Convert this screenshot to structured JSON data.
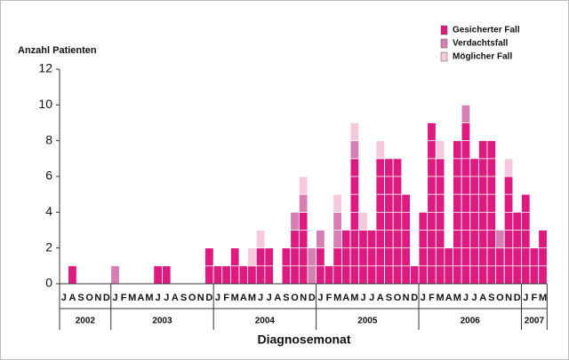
{
  "chart_data": {
    "type": "stacked_bar",
    "y_axis_label": "Anzahl Patienten",
    "x_axis_label": "Diagnosemonat",
    "categories": [
      "J",
      "A",
      "S",
      "O",
      "N",
      "D",
      "J",
      "F",
      "M",
      "A",
      "M",
      "J",
      "J",
      "A",
      "S",
      "O",
      "N",
      "D",
      "J",
      "F",
      "M",
      "A",
      "M",
      "J",
      "J",
      "A",
      "S",
      "O",
      "N",
      "D",
      "J",
      "F",
      "M",
      "A",
      "M",
      "J",
      "J",
      "A",
      "S",
      "O",
      "N",
      "D",
      "J",
      "F",
      "M",
      "A",
      "M",
      "J",
      "J",
      "A",
      "S",
      "O",
      "N",
      "D",
      "J",
      "F",
      "M"
    ],
    "years": [
      "2002",
      "2003",
      "2004",
      "2005",
      "2006",
      "2007"
    ],
    "series": [
      {
        "name": "Gesicherter Fall",
        "color": "#dc1a80",
        "values": [
          0,
          1,
          0,
          0,
          0,
          0,
          0,
          0,
          0,
          0,
          0,
          1,
          1,
          0,
          0,
          0,
          0,
          2,
          1,
          1,
          2,
          1,
          1,
          2,
          2,
          0,
          2,
          3,
          4,
          0,
          2,
          1,
          2,
          3,
          7,
          3,
          3,
          7,
          7,
          7,
          5,
          1,
          4,
          9,
          7,
          2,
          8,
          9,
          7,
          8,
          8,
          2,
          6,
          4,
          5,
          2,
          3
        ]
      },
      {
        "name": "Verdachtsfall",
        "color": "#d57fb2",
        "values": [
          0,
          0,
          0,
          0,
          0,
          0,
          1,
          0,
          0,
          0,
          0,
          0,
          0,
          0,
          0,
          0,
          0,
          0,
          0,
          0,
          0,
          0,
          0,
          0,
          0,
          0,
          0,
          1,
          1,
          2,
          1,
          0,
          2,
          0,
          1,
          0,
          0,
          0,
          0,
          0,
          0,
          0,
          0,
          0,
          0,
          0,
          0,
          1,
          0,
          0,
          0,
          1,
          0,
          0,
          0,
          0,
          0
        ]
      },
      {
        "name": "Möglicher Fall",
        "color": "#f6c8dd",
        "values": [
          0,
          0,
          0,
          0,
          0,
          0,
          0,
          0,
          0,
          0,
          0,
          0,
          0,
          0,
          0,
          0,
          0,
          0,
          0,
          0,
          0,
          0,
          1,
          1,
          0,
          0,
          0,
          0,
          1,
          0,
          0,
          0,
          1,
          0,
          1,
          1,
          0,
          1,
          0,
          0,
          0,
          0,
          0,
          0,
          1,
          0,
          0,
          0,
          0,
          0,
          0,
          0,
          1,
          0,
          0,
          0,
          0
        ]
      }
    ],
    "ylim": [
      0,
      12
    ],
    "yticks": [
      0,
      2,
      4,
      6,
      8,
      10,
      12
    ],
    "grid": false,
    "legend": "upper right"
  }
}
